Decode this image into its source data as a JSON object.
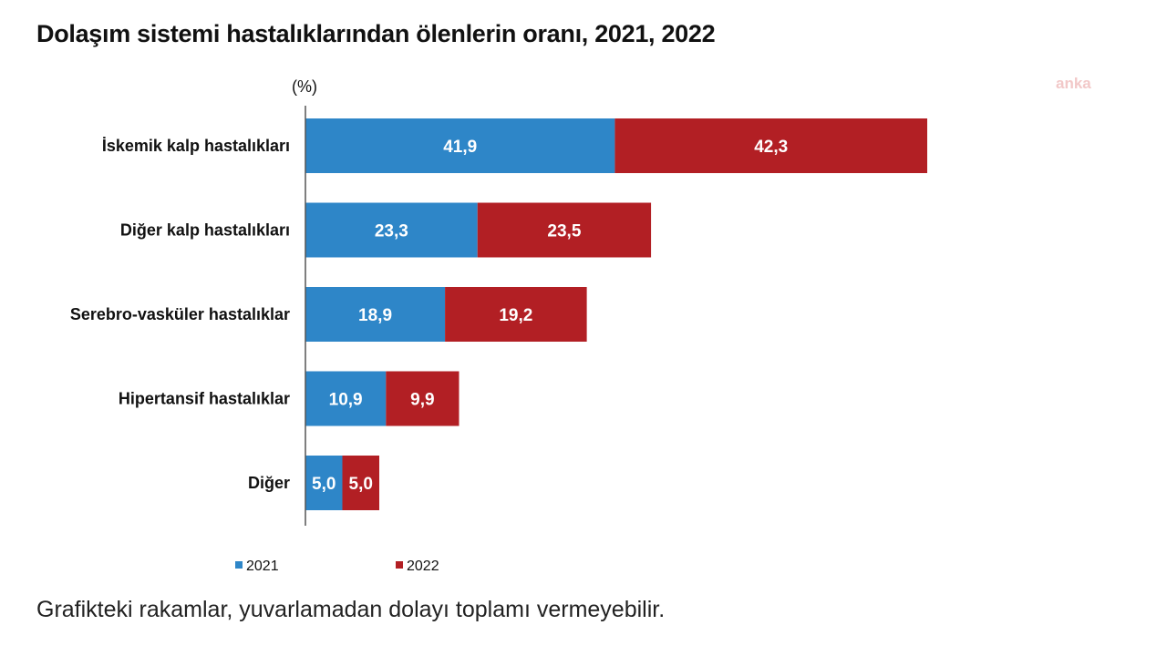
{
  "chart_data": {
    "type": "bar",
    "orientation": "horizontal",
    "stacked": true,
    "title": "Dolaşım sistemi hastalıklarından ölenlerin oranı, 2021, 2022",
    "unit": "(%)",
    "categories": [
      "İskemik kalp hastalıkları",
      "Diğer kalp hastalıkları",
      "Serebro-vasküler hastalıklar",
      "Hipertansif hastalıklar",
      "Diğer"
    ],
    "series": [
      {
        "name": "2021",
        "color": "#2e86c8",
        "values": [
          41.9,
          23.3,
          18.9,
          10.9,
          5.0
        ],
        "labels": [
          "41,9",
          "23,3",
          "18,9",
          "10,9",
          "5,0"
        ]
      },
      {
        "name": "2022",
        "color": "#b21f24",
        "values": [
          42.3,
          23.5,
          19.2,
          9.9,
          5.0
        ],
        "labels": [
          "42,3",
          "23,5",
          "19,2",
          "9,9",
          "5,0"
        ]
      }
    ],
    "xlim": [
      0,
      100
    ],
    "grid": false,
    "legend_position": "bottom"
  },
  "watermark": "anka",
  "footnote": "Grafikteki rakamlar, yuvarlamadan dolayı toplamı vermeyebilir."
}
